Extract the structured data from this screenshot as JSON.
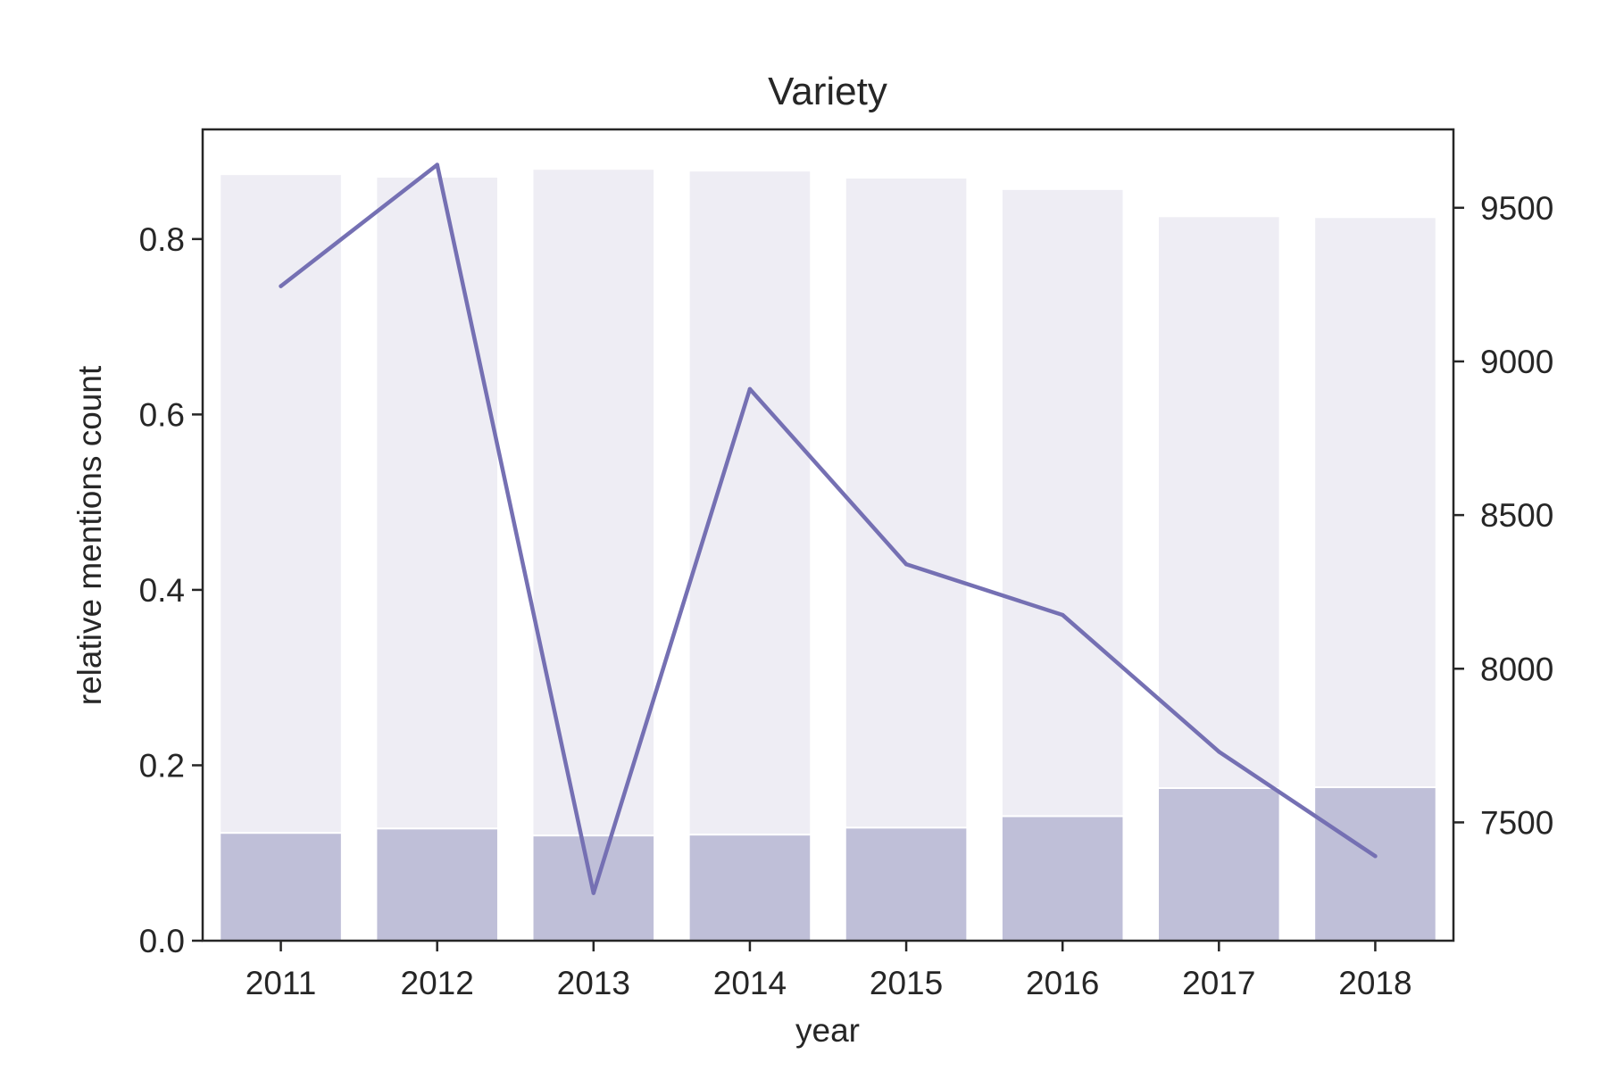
{
  "chart_data": {
    "type": "bar",
    "title": "Variety",
    "xlabel": "year",
    "ylabel": "relative mentions count",
    "y2label": "",
    "categories": [
      "2011",
      "2012",
      "2013",
      "2014",
      "2015",
      "2016",
      "2017",
      "2018"
    ],
    "ylim": [
      0,
      0.925
    ],
    "yticks": [
      0.0,
      0.2,
      0.4,
      0.6,
      0.8
    ],
    "ytick_labels": [
      "0.0",
      "0.2",
      "0.4",
      "0.6",
      "0.8"
    ],
    "y2lim": [
      7115,
      9755
    ],
    "y2ticks": [
      7500,
      8000,
      8500,
      9000,
      9500
    ],
    "y2tick_labels": [
      "7500",
      "8000",
      "8500",
      "9000",
      "9500"
    ],
    "grid": false,
    "stacked": true,
    "series": [
      {
        "kind": "bar",
        "axis": "left",
        "values": [
          0.123,
          0.128,
          0.12,
          0.121,
          0.129,
          0.142,
          0.174,
          0.175
        ]
      },
      {
        "kind": "bar",
        "axis": "left",
        "values": [
          0.751,
          0.743,
          0.76,
          0.757,
          0.741,
          0.715,
          0.652,
          0.65
        ]
      },
      {
        "kind": "line",
        "axis": "right",
        "values": [
          9245,
          9640,
          7270,
          8910,
          8340,
          8175,
          7730,
          7390
        ]
      }
    ],
    "colors": {
      "bar_bottom": "#bfbfd8",
      "bar_top": "#eeedf4",
      "line": "#7570b3",
      "axis": "#262626"
    }
  }
}
